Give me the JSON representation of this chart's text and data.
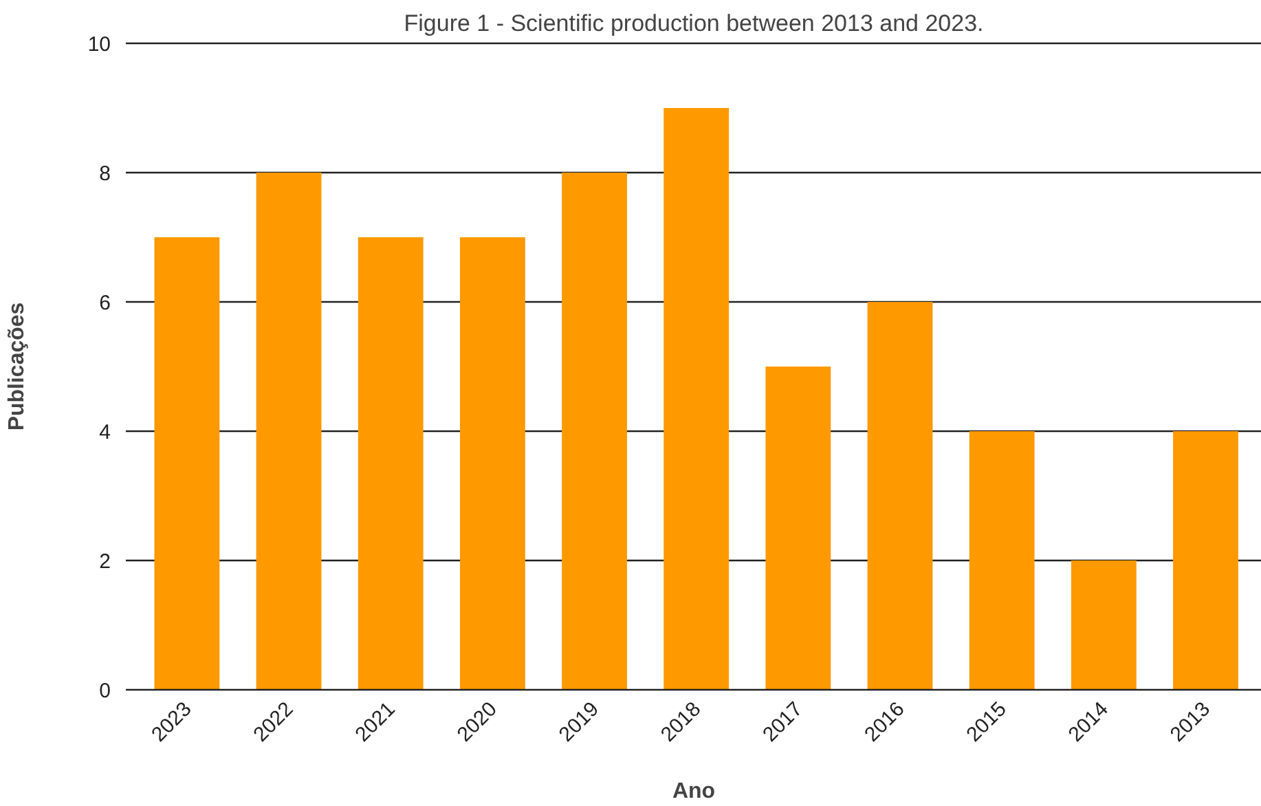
{
  "chart_data": {
    "type": "bar",
    "title": "Figure 1 - Scientific production between 2013 and 2023.",
    "xlabel": "Ano",
    "ylabel": "Publicações",
    "categories": [
      "2023",
      "2022",
      "2021",
      "2020",
      "2019",
      "2018",
      "2017",
      "2016",
      "2015",
      "2014",
      "2013"
    ],
    "values": [
      7,
      8,
      7,
      7,
      8,
      9,
      5,
      6,
      4,
      2,
      4
    ],
    "color": "#ff9900",
    "ylim": [
      0,
      10
    ],
    "yticks": [
      0,
      2,
      4,
      6,
      8,
      10
    ],
    "grid": "y"
  }
}
